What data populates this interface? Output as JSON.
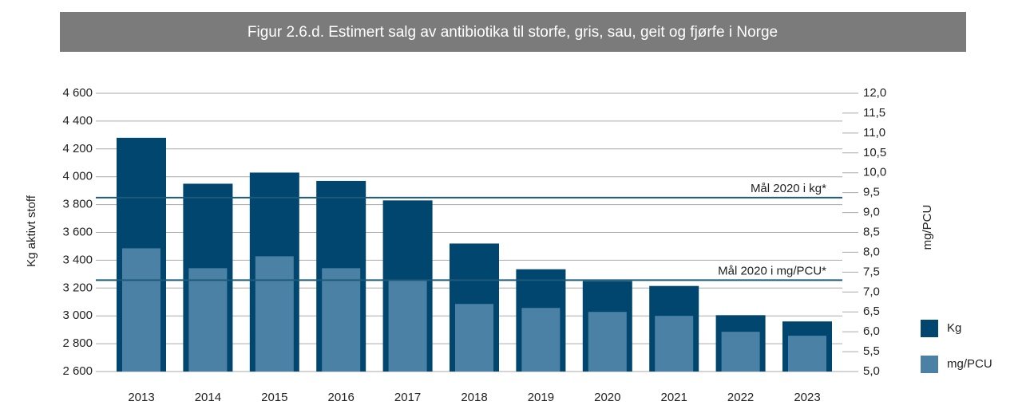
{
  "chart_data": {
    "type": "bar",
    "title": "Figur 2.6.d. Estimert salg av antibiotika til storfe, gris, sau, geit og fjørfe i Norge",
    "ylabel": "Kg aktivt stoff",
    "y2label": "mg/PCU",
    "categories": [
      "2013",
      "2014",
      "2015",
      "2016",
      "2017",
      "2018",
      "2019",
      "2020",
      "2021",
      "2022",
      "2023"
    ],
    "series": [
      {
        "name": "Kg",
        "color": "#00466e",
        "values": [
          4280,
          3950,
          4030,
          3970,
          3830,
          3520,
          3335,
          3250,
          3215,
          3005,
          2960
        ]
      },
      {
        "name": "mg/PCU",
        "color": "#4a81a4",
        "axis": "y2",
        "values": [
          8.1,
          7.6,
          7.9,
          7.6,
          7.3,
          6.7,
          6.6,
          6.5,
          6.4,
          6.0,
          5.9
        ]
      }
    ],
    "ylim": [
      2600,
      4600
    ],
    "yticks": [
      {
        "value": 2600,
        "label": "2 600"
      },
      {
        "value": 2800,
        "label": "2 800"
      },
      {
        "value": 3000,
        "label": "3 000"
      },
      {
        "value": 3200,
        "label": "3 200"
      },
      {
        "value": 3400,
        "label": "3 400"
      },
      {
        "value": 3600,
        "label": "3 600"
      },
      {
        "value": 3800,
        "label": "3 800"
      },
      {
        "value": 4000,
        "label": "4 000"
      },
      {
        "value": 4200,
        "label": "4 200"
      },
      {
        "value": 4400,
        "label": "4 400"
      },
      {
        "value": 4600,
        "label": "4 600"
      }
    ],
    "y2lim": [
      5,
      12
    ],
    "y2ticks": [
      {
        "value": 5,
        "label": "5,0"
      },
      {
        "value": 5.5,
        "label": "5,5"
      },
      {
        "value": 6,
        "label": "6,0"
      },
      {
        "value": 6.5,
        "label": "6,5"
      },
      {
        "value": 7,
        "label": "7,0"
      },
      {
        "value": 7.5,
        "label": "7,5"
      },
      {
        "value": 8,
        "label": "8,0"
      },
      {
        "value": 8.5,
        "label": "8,5"
      },
      {
        "value": 9,
        "label": "9,0"
      },
      {
        "value": 9.5,
        "label": "9,5"
      },
      {
        "value": 10,
        "label": "10,0"
      },
      {
        "value": 10.5,
        "label": "10,5"
      },
      {
        "value": 11,
        "label": "11,0"
      },
      {
        "value": 11.5,
        "label": "11,5"
      },
      {
        "value": 12,
        "label": "12,0"
      }
    ],
    "annotations": [
      {
        "text": "Mål 2020 i kg*",
        "value": 3850,
        "axis": "y",
        "color": "#1d5b7a"
      },
      {
        "text": "Mål 2020 i mg/PCU*",
        "value": 7.3,
        "axis": "y2",
        "color": "#1d5b7a"
      }
    ],
    "grid": true,
    "legend": "right"
  }
}
